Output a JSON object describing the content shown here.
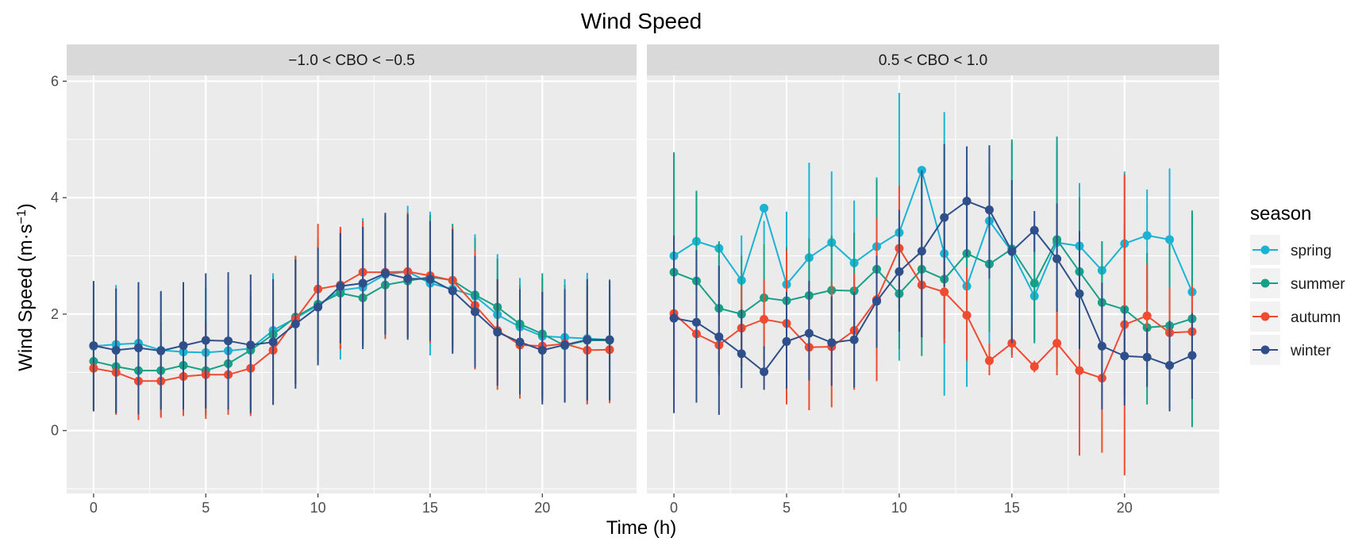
{
  "chart_data": {
    "type": "line",
    "title": "Wind Speed",
    "xlabel": "Time (h)",
    "ylabel": "Wind Speed (m·s⁻¹)",
    "ylabel_parts": {
      "main": "Wind Speed (m·s",
      "sup": "−1",
      "close": ")"
    },
    "xlim": [
      -1.2,
      24.2
    ],
    "ylim": [
      -1.08,
      6.1
    ],
    "xticks": [
      0,
      5,
      10,
      15,
      20
    ],
    "yticks": [
      0,
      2,
      4,
      6
    ],
    "grid": true,
    "legend": {
      "title": "season",
      "position": "right"
    },
    "panels": [
      {
        "strip": "−1.0 < CBO < −0.5",
        "series": [
          {
            "name": "spring",
            "color": "#1ab3d3",
            "x": [
              0,
              1,
              2,
              3,
              4,
              5,
              6,
              7,
              8,
              9,
              10,
              11,
              12,
              13,
              14,
              15,
              16,
              17,
              18,
              19,
              20,
              21,
              22,
              23
            ],
            "y": [
              1.45,
              1.48,
              1.5,
              1.38,
              1.35,
              1.34,
              1.37,
              1.41,
              1.72,
              1.93,
              2.15,
              2.41,
              2.46,
              2.68,
              2.73,
              2.53,
              2.43,
              2.31,
              1.99,
              1.78,
              1.62,
              1.6,
              1.58,
              1.56
            ],
            "lo": [
              0.37,
              0.36,
              0.38,
              0.33,
              0.38,
              0.3,
              0.34,
              0.4,
              0.55,
              0.8,
              1.3,
              1.22,
              1.5,
              1.57,
              1.6,
              1.29,
              1.35,
              1.2,
              0.84,
              0.7,
              0.55,
              0.5,
              0.46,
              0.5
            ],
            "hi": [
              2.55,
              2.5,
              2.55,
              2.4,
              2.45,
              2.45,
              2.45,
              2.4,
              2.7,
              3.0,
              3.2,
              3.46,
              3.65,
              3.7,
              3.86,
              3.76,
              3.4,
              3.37,
              3.03,
              2.62,
              2.62,
              2.6,
              2.71,
              2.6
            ]
          },
          {
            "name": "summer",
            "color": "#16a085",
            "x": [
              0,
              1,
              2,
              3,
              4,
              5,
              6,
              7,
              8,
              9,
              10,
              11,
              12,
              13,
              14,
              15,
              16,
              17,
              18,
              19,
              20,
              21,
              22,
              23
            ],
            "y": [
              1.19,
              1.1,
              1.03,
              1.03,
              1.12,
              1.03,
              1.15,
              1.38,
              1.65,
              1.95,
              2.17,
              2.36,
              2.28,
              2.5,
              2.57,
              2.64,
              2.58,
              2.33,
              2.12,
              1.83,
              1.66,
              1.46,
              1.55,
              1.55
            ],
            "lo": [
              0.36,
              0.3,
              0.25,
              0.25,
              0.3,
              0.26,
              0.32,
              0.35,
              0.55,
              0.8,
              1.2,
              1.4,
              1.45,
              1.6,
              1.6,
              1.6,
              1.5,
              1.2,
              1.0,
              0.75,
              0.6,
              0.5,
              0.5,
              0.52
            ],
            "hi": [
              2.0,
              2.0,
              1.9,
              1.85,
              2.0,
              1.9,
              2.0,
              2.3,
              2.6,
              3.0,
              3.3,
              3.4,
              3.45,
              3.6,
              3.7,
              3.7,
              3.55,
              3.3,
              2.95,
              2.5,
              2.7,
              2.5,
              2.5,
              2.5
            ]
          },
          {
            "name": "autumn",
            "color": "#f04a30",
            "x": [
              0,
              1,
              2,
              3,
              4,
              5,
              6,
              7,
              8,
              9,
              10,
              11,
              12,
              13,
              14,
              15,
              16,
              17,
              18,
              19,
              20,
              21,
              22,
              23
            ],
            "y": [
              1.07,
              1.0,
              0.85,
              0.85,
              0.93,
              0.96,
              0.96,
              1.07,
              1.38,
              1.91,
              2.43,
              2.5,
              2.72,
              2.72,
              2.73,
              2.66,
              2.58,
              2.15,
              1.72,
              1.47,
              1.45,
              1.49,
              1.38,
              1.39
            ],
            "lo": [
              0.33,
              0.27,
              0.18,
              0.22,
              0.25,
              0.2,
              0.27,
              0.25,
              0.45,
              0.8,
              1.35,
              1.4,
              1.55,
              1.58,
              1.6,
              1.5,
              1.42,
              1.05,
              0.7,
              0.55,
              0.5,
              0.48,
              0.45,
              0.47
            ],
            "hi": [
              1.9,
              1.9,
              1.7,
              1.7,
              1.8,
              1.85,
              1.85,
              2.0,
              2.4,
              3.0,
              3.55,
              3.5,
              3.6,
              3.7,
              3.75,
              3.6,
              3.5,
              3.1,
              2.6,
              2.4,
              2.4,
              2.4,
              2.3,
              2.3
            ]
          },
          {
            "name": "winter",
            "color": "#2e4f8a",
            "x": [
              0,
              1,
              2,
              3,
              4,
              5,
              6,
              7,
              8,
              9,
              10,
              11,
              12,
              13,
              14,
              15,
              16,
              17,
              18,
              19,
              20,
              21,
              22,
              23
            ],
            "y": [
              1.46,
              1.38,
              1.42,
              1.37,
              1.46,
              1.55,
              1.54,
              1.47,
              1.52,
              1.83,
              2.12,
              2.48,
              2.53,
              2.7,
              2.61,
              2.6,
              2.4,
              2.04,
              1.69,
              1.52,
              1.38,
              1.47,
              1.56,
              1.56
            ],
            "lo": [
              0.33,
              0.3,
              0.28,
              0.36,
              0.36,
              0.38,
              0.36,
              0.3,
              0.44,
              0.72,
              1.12,
              1.5,
              1.4,
              1.65,
              1.56,
              1.54,
              1.32,
              1.08,
              0.77,
              0.62,
              0.45,
              0.48,
              0.52,
              0.52
            ],
            "hi": [
              2.57,
              2.44,
              2.55,
              2.39,
              2.55,
              2.7,
              2.72,
              2.68,
              2.6,
              2.94,
              3.14,
              3.39,
              3.5,
              3.74,
              3.72,
              3.6,
              3.46,
              3.0,
              2.6,
              2.43,
              2.38,
              2.43,
              2.6,
              2.58
            ]
          }
        ]
      },
      {
        "strip": "0.5 < CBO < 1.0",
        "series": [
          {
            "name": "spring",
            "color": "#1ab3d3",
            "x": [
              0,
              1,
              2,
              3,
              4,
              5,
              6,
              7,
              8,
              9,
              10,
              11,
              12,
              13,
              14,
              15,
              16,
              17,
              18,
              19,
              20,
              21,
              22,
              23
            ],
            "y": [
              3.0,
              3.25,
              3.13,
              2.58,
              3.82,
              2.51,
              2.97,
              3.23,
              2.88,
              3.16,
              3.4,
              4.47,
              3.04,
              2.48,
              3.6,
              3.07,
              2.31,
              3.23,
              3.17,
              2.75,
              3.21,
              3.35,
              3.28,
              2.38
            ],
            "lo": [
              1.2,
              2.4,
              2.5,
              1.8,
              3.2,
              1.5,
              1.4,
              1.9,
              1.7,
              2.0,
              1.2,
              1.6,
              0.6,
              0.75,
              1.5,
              1.3,
              1.55,
              1.1,
              2.1,
              1.5,
              1.4,
              2.2,
              2.0,
              0.55
            ],
            "hi": [
              4.75,
              4.1,
              3.0,
              3.35,
              3.6,
              3.76,
              4.6,
              4.45,
              3.95,
              4.35,
              5.8,
              4.4,
              5.47,
              4.1,
              3.95,
              4.95,
              3.1,
              4.9,
              4.25,
              3.25,
              4.45,
              4.14,
              4.5,
              3.75
            ]
          },
          {
            "name": "summer",
            "color": "#16a085",
            "x": [
              0,
              1,
              2,
              3,
              4,
              5,
              6,
              7,
              8,
              9,
              10,
              11,
              12,
              13,
              14,
              15,
              16,
              17,
              18,
              19,
              20,
              21,
              22,
              23
            ],
            "y": [
              2.72,
              2.57,
              2.1,
              2.0,
              2.28,
              2.23,
              2.32,
              2.41,
              2.4,
              2.77,
              2.35,
              2.77,
              2.6,
              3.04,
              2.86,
              3.12,
              2.53,
              3.28,
              2.73,
              2.2,
              2.08,
              1.77,
              1.8,
              1.92
            ],
            "lo": [
              0.7,
              1.0,
              0.95,
              1.0,
              1.4,
              1.3,
              1.4,
              1.5,
              1.4,
              1.3,
              1.4,
              1.28,
              1.6,
              1.9,
              1.7,
              1.3,
              1.5,
              1.5,
              1.4,
              1.4,
              0.6,
              0.45,
              0.38,
              0.06
            ],
            "hi": [
              4.78,
              4.12,
              3.25,
              3.0,
              3.2,
              3.15,
              3.3,
              3.35,
              3.4,
              4.32,
              3.3,
              4.3,
              3.6,
              4.25,
              4.55,
              5.0,
              3.55,
              5.05,
              4.0,
              3.25,
              3.55,
              3.05,
              3.2,
              3.78
            ]
          },
          {
            "name": "autumn",
            "color": "#f04a30",
            "x": [
              0,
              1,
              2,
              3,
              4,
              5,
              6,
              7,
              8,
              9,
              10,
              11,
              12,
              13,
              14,
              15,
              16,
              17,
              18,
              19,
              20,
              21,
              22,
              23
            ],
            "y": [
              2.01,
              1.66,
              1.47,
              1.76,
              1.91,
              1.84,
              1.43,
              1.44,
              1.72,
              2.25,
              3.13,
              2.5,
              2.38,
              1.98,
              1.2,
              1.5,
              1.1,
              1.5,
              1.03,
              0.9,
              1.82,
              1.97,
              1.68,
              1.7
            ],
            "lo": [
              1.25,
              1.0,
              1.0,
              1.1,
              1.2,
              0.45,
              0.35,
              0.4,
              0.7,
              0.85,
              2.1,
              1.6,
              1.5,
              1.2,
              0.95,
              1.25,
              1.0,
              0.95,
              -0.43,
              -0.38,
              -0.77,
              1.1,
              0.9,
              0.9
            ],
            "hi": [
              2.8,
              2.3,
              2.0,
              2.5,
              2.6,
              3.1,
              2.5,
              2.55,
              2.7,
              3.65,
              4.2,
              3.4,
              3.3,
              2.8,
              1.5,
              1.8,
              1.2,
              2.1,
              2.5,
              2.2,
              4.4,
              2.85,
              2.45,
              2.5
            ]
          },
          {
            "name": "winter",
            "color": "#2e4f8a",
            "x": [
              0,
              1,
              2,
              3,
              4,
              5,
              6,
              7,
              8,
              9,
              10,
              11,
              12,
              13,
              14,
              15,
              16,
              17,
              18,
              19,
              20,
              21,
              22,
              23
            ],
            "y": [
              1.93,
              1.86,
              1.61,
              1.32,
              1.01,
              1.53,
              1.67,
              1.51,
              1.56,
              2.22,
              2.73,
              3.08,
              3.66,
              3.94,
              3.79,
              3.08,
              3.44,
              2.95,
              2.35,
              1.45,
              1.28,
              1.26,
              1.12,
              1.29
            ],
            "lo": [
              0.3,
              0.48,
              0.27,
              0.73,
              0.7,
              0.72,
              0.86,
              0.77,
              0.74,
              1.42,
              1.7,
              1.6,
              2.47,
              2.99,
              2.61,
              1.5,
              3.07,
              2.04,
              1.4,
              0.36,
              0.43,
              0.75,
              0.33,
              0.54
            ],
            "hi": [
              3.35,
              3.1,
              2.83,
              2.08,
              1.45,
              2.38,
              2.57,
              2.3,
              2.38,
              3.0,
              3.79,
              4.47,
              4.92,
              4.88,
              4.9,
              4.3,
              3.77,
              3.9,
              3.43,
              2.54,
              2.13,
              1.76,
              1.89,
              2.02
            ]
          }
        ]
      }
    ]
  }
}
